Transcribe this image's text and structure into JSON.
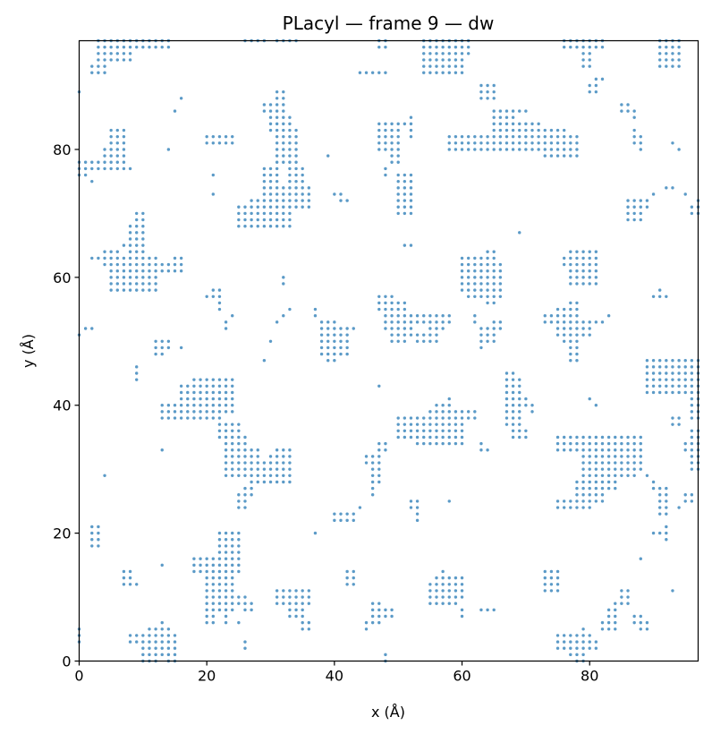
{
  "chart_data": {
    "type": "scatter",
    "title": "PLacyl — frame 9 — dw",
    "xlabel": "x (Å)",
    "ylabel": "y (Å)",
    "xlim": [
      0,
      97
    ],
    "ylim": [
      0,
      97
    ],
    "xticks": [
      0,
      20,
      40,
      60,
      80
    ],
    "yticks": [
      0,
      20,
      40,
      60,
      80
    ],
    "grid": false,
    "legend": "none",
    "marker_color": "#5b9ac7",
    "grid_step": 1,
    "blocks": [
      [
        3,
        8,
        94,
        97
      ],
      [
        2,
        4,
        92,
        93
      ],
      [
        9,
        11,
        96,
        97
      ],
      [
        12,
        14,
        96,
        97
      ],
      [
        26,
        29,
        97,
        97
      ],
      [
        31,
        34,
        97,
        97
      ],
      [
        47,
        48,
        96,
        97
      ],
      [
        54,
        60,
        92,
        97
      ],
      [
        61,
        61,
        95,
        97
      ],
      [
        76,
        82,
        96,
        97
      ],
      [
        79,
        80,
        93,
        95
      ],
      [
        91,
        94,
        93,
        97
      ],
      [
        44,
        48,
        92,
        92
      ],
      [
        63,
        65,
        88,
        90
      ],
      [
        81,
        82,
        91,
        91
      ],
      [
        80,
        81,
        89,
        90
      ],
      [
        85,
        86,
        86,
        87
      ],
      [
        87,
        87,
        85,
        86
      ],
      [
        0,
        0,
        89,
        89
      ],
      [
        15,
        15,
        86,
        86
      ],
      [
        16,
        16,
        88,
        88
      ],
      [
        29,
        30,
        86,
        87
      ],
      [
        31,
        32,
        86,
        89
      ],
      [
        30,
        33,
        83,
        85
      ],
      [
        31,
        34,
        78,
        83
      ],
      [
        29,
        31,
        73,
        77
      ],
      [
        27,
        30,
        68,
        72
      ],
      [
        25,
        33,
        68,
        71
      ],
      [
        29,
        36,
        71,
        74
      ],
      [
        33,
        35,
        74,
        77
      ],
      [
        20,
        24,
        81,
        82
      ],
      [
        21,
        21,
        76,
        76
      ],
      [
        21,
        21,
        73,
        73
      ],
      [
        14,
        14,
        80,
        80
      ],
      [
        39,
        39,
        79,
        79
      ],
      [
        40,
        41,
        73,
        73
      ],
      [
        41,
        42,
        72,
        72
      ],
      [
        0,
        1,
        76,
        78
      ],
      [
        1,
        7,
        77,
        78
      ],
      [
        4,
        7,
        79,
        80
      ],
      [
        5,
        7,
        81,
        83
      ],
      [
        8,
        8,
        77,
        77
      ],
      [
        2,
        2,
        75,
        75
      ],
      [
        47,
        51,
        84,
        84
      ],
      [
        47,
        50,
        80,
        83
      ],
      [
        49,
        50,
        78,
        79
      ],
      [
        50,
        52,
        70,
        76
      ],
      [
        52,
        52,
        82,
        85
      ],
      [
        48,
        48,
        76,
        77
      ],
      [
        58,
        73,
        80,
        82
      ],
      [
        62,
        68,
        82,
        82
      ],
      [
        65,
        68,
        83,
        86
      ],
      [
        66,
        70,
        86,
        86
      ],
      [
        67,
        72,
        83,
        84
      ],
      [
        71,
        76,
        83,
        83
      ],
      [
        73,
        76,
        79,
        82
      ],
      [
        76,
        78,
        79,
        82
      ],
      [
        78,
        78,
        79,
        79
      ],
      [
        87,
        87,
        81,
        83
      ],
      [
        88,
        88,
        80,
        82
      ],
      [
        86,
        88,
        69,
        72
      ],
      [
        87,
        89,
        71,
        72
      ],
      [
        90,
        90,
        73,
        73
      ],
      [
        92,
        93,
        74,
        74
      ],
      [
        95,
        95,
        73,
        73
      ],
      [
        97,
        97,
        71,
        72
      ],
      [
        96,
        97,
        70,
        71
      ],
      [
        93,
        93,
        81,
        81
      ],
      [
        94,
        94,
        80,
        80
      ],
      [
        8,
        10,
        58,
        68
      ],
      [
        9,
        10,
        69,
        70
      ],
      [
        5,
        12,
        58,
        63
      ],
      [
        4,
        6,
        62,
        64
      ],
      [
        2,
        4,
        63,
        63
      ],
      [
        11,
        14,
        61,
        62
      ],
      [
        14,
        16,
        61,
        61
      ],
      [
        15,
        16,
        62,
        63
      ],
      [
        7,
        7,
        65,
        65
      ],
      [
        51,
        52,
        65,
        65
      ],
      [
        69,
        69,
        67,
        67
      ],
      [
        61,
        66,
        57,
        62
      ],
      [
        60,
        64,
        58,
        63
      ],
      [
        64,
        65,
        56,
        64
      ],
      [
        60,
        62,
        62,
        62
      ],
      [
        77,
        81,
        59,
        64
      ],
      [
        76,
        81,
        62,
        63
      ],
      [
        0,
        0,
        51,
        51
      ],
      [
        1,
        2,
        52,
        52
      ],
      [
        12,
        13,
        48,
        50
      ],
      [
        14,
        14,
        49,
        50
      ],
      [
        16,
        16,
        49,
        49
      ],
      [
        20,
        21,
        57,
        57
      ],
      [
        22,
        22,
        55,
        58
      ],
      [
        23,
        23,
        52,
        53
      ],
      [
        24,
        24,
        54,
        54
      ],
      [
        9,
        9,
        44,
        46
      ],
      [
        29,
        29,
        47,
        47
      ],
      [
        30,
        30,
        50,
        50
      ],
      [
        31,
        31,
        53,
        53
      ],
      [
        32,
        32,
        54,
        54
      ],
      [
        33,
        33,
        55,
        55
      ],
      [
        32,
        32,
        59,
        60
      ],
      [
        37,
        37,
        54,
        55
      ],
      [
        38,
        40,
        52,
        53
      ],
      [
        38,
        42,
        48,
        51
      ],
      [
        39,
        40,
        47,
        47
      ],
      [
        41,
        43,
        52,
        52
      ],
      [
        47,
        49,
        55,
        57
      ],
      [
        49,
        51,
        50,
        56
      ],
      [
        48,
        52,
        52,
        54
      ],
      [
        52,
        58,
        53,
        54
      ],
      [
        51,
        52,
        51,
        52
      ],
      [
        53,
        54,
        50,
        51
      ],
      [
        55,
        56,
        50,
        53
      ],
      [
        57,
        57,
        52,
        54
      ],
      [
        47,
        47,
        43,
        43
      ],
      [
        62,
        62,
        53,
        54
      ],
      [
        63,
        65,
        50,
        52
      ],
      [
        65,
        66,
        52,
        53
      ],
      [
        63,
        63,
        49,
        49
      ],
      [
        73,
        75,
        53,
        54
      ],
      [
        75,
        77,
        51,
        55
      ],
      [
        77,
        78,
        47,
        56
      ],
      [
        78,
        80,
        51,
        53
      ],
      [
        76,
        76,
        50,
        50
      ],
      [
        80,
        82,
        53,
        53
      ],
      [
        83,
        83,
        54,
        54
      ],
      [
        90,
        92,
        57,
        57
      ],
      [
        91,
        91,
        58,
        58
      ],
      [
        67,
        68,
        37,
        45
      ],
      [
        68,
        69,
        35,
        44
      ],
      [
        69,
        70,
        35,
        36
      ],
      [
        70,
        70,
        40,
        41
      ],
      [
        71,
        71,
        39,
        40
      ],
      [
        69,
        69,
        44,
        44
      ],
      [
        75,
        88,
        33,
        35
      ],
      [
        79,
        84,
        27,
        33
      ],
      [
        81,
        87,
        29,
        32
      ],
      [
        84,
        88,
        30,
        32
      ],
      [
        78,
        82,
        25,
        28
      ],
      [
        75,
        80,
        24,
        25
      ],
      [
        80,
        80,
        41,
        41
      ],
      [
        81,
        81,
        40,
        40
      ],
      [
        85,
        86,
        34,
        34
      ],
      [
        89,
        89,
        29,
        29
      ],
      [
        90,
        90,
        27,
        28
      ],
      [
        91,
        92,
        23,
        27
      ],
      [
        89,
        97,
        42,
        47
      ],
      [
        93,
        97,
        46,
        47
      ],
      [
        91,
        95,
        44,
        45
      ],
      [
        90,
        93,
        42,
        43
      ],
      [
        96,
        97,
        38,
        43
      ],
      [
        95,
        96,
        33,
        34
      ],
      [
        96,
        97,
        30,
        36
      ],
      [
        93,
        94,
        37,
        38
      ],
      [
        95,
        96,
        25,
        26
      ],
      [
        94,
        94,
        24,
        24
      ],
      [
        92,
        92,
        19,
        21
      ],
      [
        90,
        92,
        20,
        20
      ],
      [
        93,
        93,
        11,
        11
      ],
      [
        50,
        59,
        35,
        38
      ],
      [
        53,
        60,
        34,
        38
      ],
      [
        55,
        62,
        38,
        39
      ],
      [
        56,
        58,
        39,
        40
      ],
      [
        58,
        58,
        41,
        41
      ],
      [
        52,
        54,
        36,
        37
      ],
      [
        59,
        60,
        36,
        37
      ],
      [
        50,
        51,
        35,
        35
      ],
      [
        54,
        54,
        34,
        34
      ],
      [
        63,
        63,
        33,
        34
      ],
      [
        64,
        64,
        33,
        33
      ],
      [
        16,
        22,
        38,
        43
      ],
      [
        18,
        24,
        39,
        44
      ],
      [
        13,
        19,
        38,
        40
      ],
      [
        22,
        25,
        35,
        37
      ],
      [
        23,
        26,
        29,
        35
      ],
      [
        24,
        28,
        29,
        33
      ],
      [
        27,
        33,
        28,
        31
      ],
      [
        30,
        32,
        29,
        32
      ],
      [
        31,
        33,
        31,
        33
      ],
      [
        26,
        27,
        26,
        27
      ],
      [
        25,
        26,
        24,
        26
      ],
      [
        22,
        25,
        14,
        20
      ],
      [
        20,
        24,
        8,
        16
      ],
      [
        18,
        20,
        14,
        16
      ],
      [
        20,
        21,
        6,
        9
      ],
      [
        23,
        23,
        6,
        8
      ],
      [
        25,
        26,
        9,
        10
      ],
      [
        26,
        27,
        8,
        9
      ],
      [
        25,
        25,
        6,
        6
      ],
      [
        26,
        26,
        2,
        3
      ],
      [
        11,
        14,
        1,
        5
      ],
      [
        8,
        13,
        3,
        4
      ],
      [
        10,
        12,
        0,
        2
      ],
      [
        14,
        15,
        0,
        4
      ],
      [
        13,
        13,
        6,
        6
      ],
      [
        13,
        13,
        15,
        15
      ],
      [
        7,
        8,
        12,
        14
      ],
      [
        9,
        9,
        12,
        12
      ],
      [
        2,
        3,
        18,
        21
      ],
      [
        4,
        4,
        29,
        29
      ],
      [
        0,
        0,
        3,
        5
      ],
      [
        31,
        36,
        9,
        11
      ],
      [
        33,
        35,
        7,
        9
      ],
      [
        35,
        36,
        5,
        6
      ],
      [
        37,
        37,
        20,
        20
      ],
      [
        40,
        43,
        22,
        23
      ],
      [
        44,
        44,
        24,
        24
      ],
      [
        45,
        47,
        31,
        32
      ],
      [
        46,
        47,
        28,
        30
      ],
      [
        47,
        47,
        33,
        34
      ],
      [
        48,
        48,
        33,
        34
      ],
      [
        46,
        46,
        26,
        27
      ],
      [
        42,
        43,
        12,
        14
      ],
      [
        46,
        47,
        6,
        9
      ],
      [
        45,
        45,
        5,
        6
      ],
      [
        48,
        49,
        7,
        8
      ],
      [
        48,
        48,
        0,
        1
      ],
      [
        52,
        53,
        24,
        25
      ],
      [
        53,
        53,
        22,
        23
      ],
      [
        58,
        58,
        25,
        25
      ],
      [
        55,
        59,
        9,
        12
      ],
      [
        56,
        60,
        10,
        13
      ],
      [
        57,
        57,
        14,
        14
      ],
      [
        60,
        60,
        7,
        8
      ],
      [
        63,
        65,
        8,
        8
      ],
      [
        73,
        75,
        11,
        14
      ],
      [
        75,
        80,
        2,
        4
      ],
      [
        77,
        78,
        1,
        2
      ],
      [
        78,
        79,
        0,
        1
      ],
      [
        80,
        81,
        2,
        3
      ],
      [
        79,
        79,
        5,
        5
      ],
      [
        82,
        84,
        5,
        6
      ],
      [
        83,
        84,
        7,
        8
      ],
      [
        84,
        86,
        9,
        9
      ],
      [
        85,
        86,
        10,
        11
      ],
      [
        87,
        88,
        6,
        7
      ],
      [
        88,
        89,
        5,
        6
      ],
      [
        88,
        88,
        16,
        16
      ],
      [
        13,
        13,
        33,
        33
      ],
      [
        16,
        16,
        49,
        49
      ],
      [
        21,
        21,
        57,
        58
      ]
    ]
  }
}
